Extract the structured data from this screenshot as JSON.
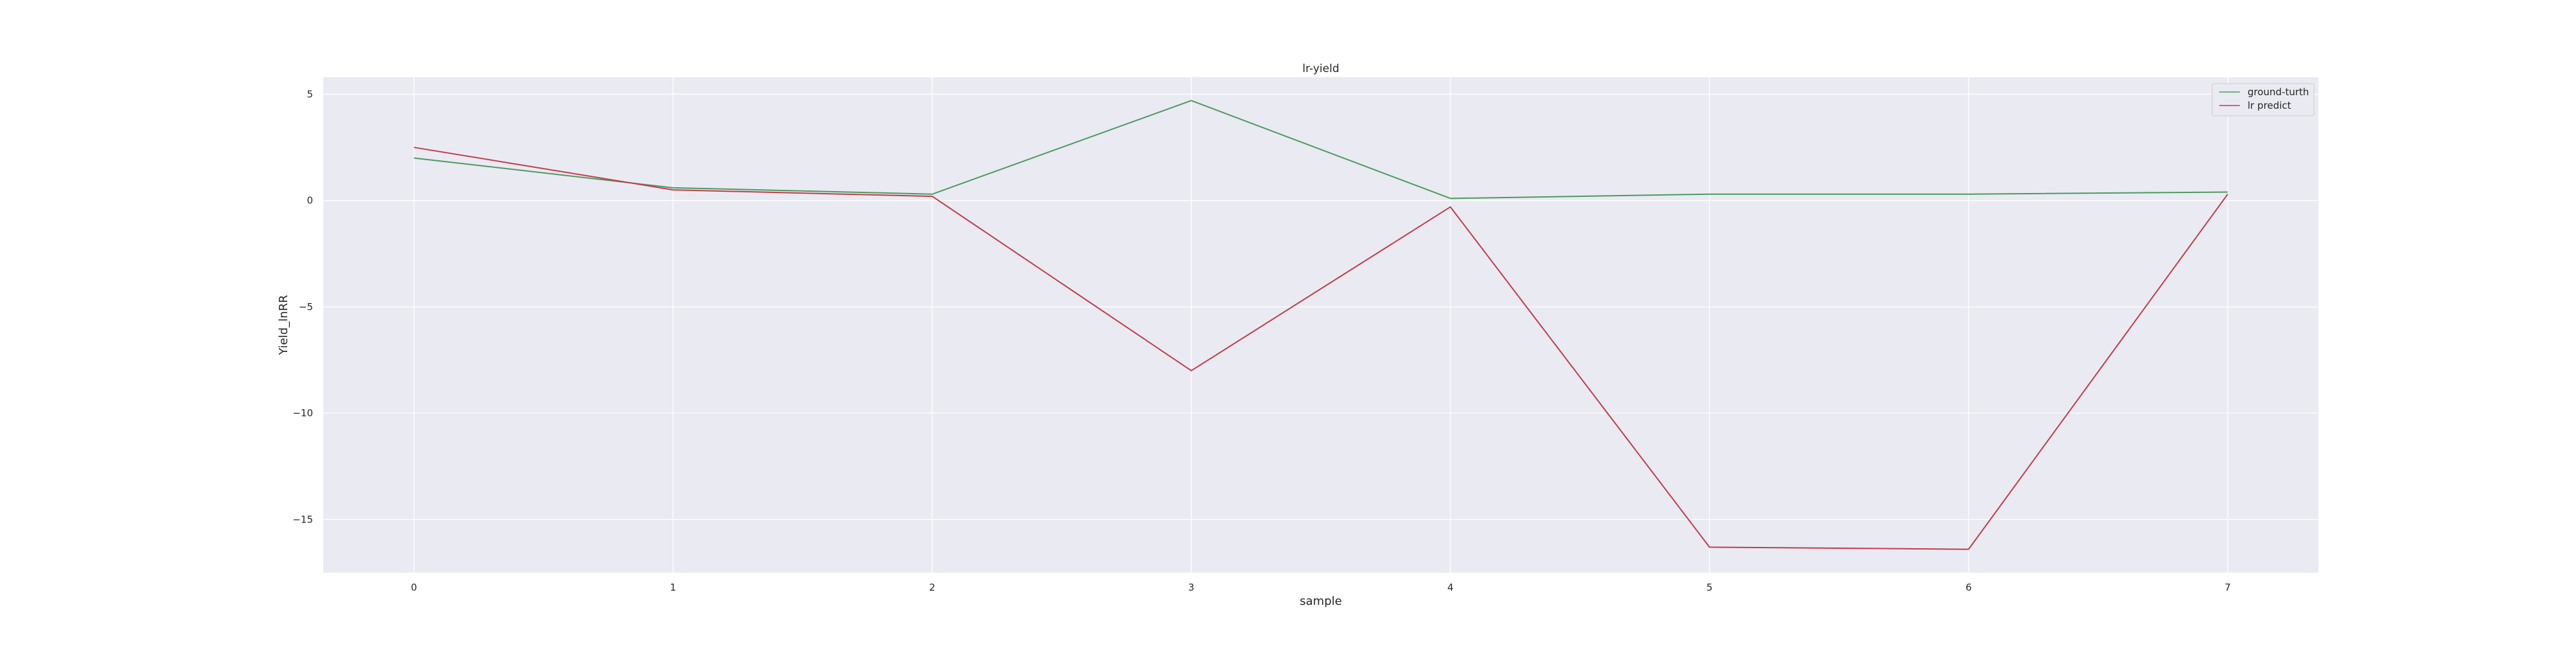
{
  "chart_data": {
    "type": "line",
    "title": "lr-yield",
    "xlabel": "sample",
    "ylabel": "Yield_lnRR",
    "x": [
      0,
      1,
      2,
      3,
      4,
      5,
      6,
      7
    ],
    "xlim": [
      -0.35,
      7.35
    ],
    "ylim": [
      -17.5,
      5.8
    ],
    "xticks": [
      0,
      1,
      2,
      3,
      4,
      5,
      6,
      7
    ],
    "yticks": [
      5,
      0,
      -5,
      -10,
      -15
    ],
    "ytick_labels": [
      "5",
      "0",
      "−5",
      "−10",
      "−15"
    ],
    "grid": true,
    "legend_position": "top-right",
    "series": [
      {
        "name": "ground-turth",
        "color": "#4c9a5f",
        "values": [
          2.0,
          0.6,
          0.3,
          4.7,
          0.1,
          0.3,
          0.3,
          0.4
        ]
      },
      {
        "name": "lr predict",
        "color": "#c03d4c",
        "values": [
          2.5,
          0.5,
          0.2,
          -8.0,
          -0.3,
          -16.3,
          -16.4,
          0.3
        ]
      }
    ]
  }
}
